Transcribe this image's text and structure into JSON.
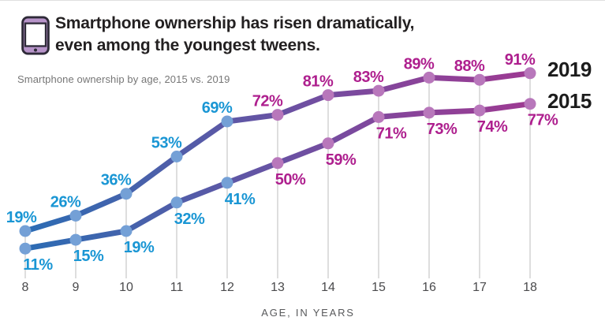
{
  "header": {
    "title_line1": "Smartphone ownership has risen dramatically,",
    "title_line2": "even among the youngest tweens.",
    "subtitle": "Smartphone ownership by age, 2015 vs. 2019",
    "icon": "smartphone-icon"
  },
  "chart_data": {
    "type": "line",
    "x": [
      8,
      9,
      10,
      11,
      12,
      13,
      14,
      15,
      16,
      17,
      18
    ],
    "xlabel": "AGE, IN YEARS",
    "value_suffix": "%",
    "ylim": [
      0,
      100
    ],
    "grid": "vertical-per-category",
    "legend_position": "right",
    "series": [
      {
        "name": "2019",
        "values": [
          19,
          26,
          36,
          53,
          69,
          72,
          81,
          83,
          89,
          88,
          91
        ],
        "label_position": "above"
      },
      {
        "name": "2015",
        "values": [
          11,
          15,
          19,
          32,
          41,
          50,
          59,
          71,
          73,
          74,
          77
        ],
        "label_position": "below"
      }
    ],
    "colors": {
      "line_gradient": [
        "#2b6cb4",
        "#4a60aa",
        "#6852a3",
        "#87449a",
        "#9d3a92"
      ],
      "point_blue": "#74a0d6",
      "point_purple": "#b877bb",
      "label_blue": "#1a96d4",
      "label_magenta": "#ae1f8e",
      "blue_through_age": 12,
      "gridline": "#d3d3d3",
      "axis_text": "#4a4a4c",
      "icon_fill": "#b794c9",
      "icon_stroke": "#2e2a38"
    }
  }
}
